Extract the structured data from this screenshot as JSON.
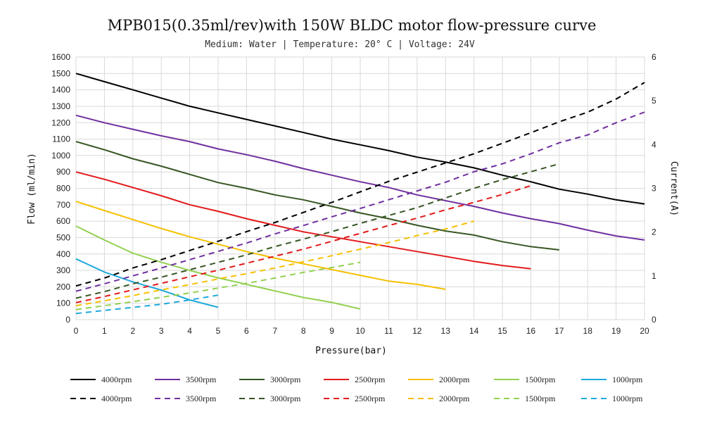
{
  "chart_data": {
    "type": "line",
    "title": "MPB015(0.35ml/rev)with 150W BLDC motor flow-pressure curve",
    "subtitle": "Medium: Water | Temperature: 20° C | Voltage: 24V",
    "xlabel": "Pressure(bar)",
    "ylabel": "Flow (ml/min)",
    "y2label": "Current(A)",
    "xlim": [
      0,
      20
    ],
    "ylim": [
      0,
      1600
    ],
    "y2lim": [
      0,
      6
    ],
    "x_ticks": [
      0,
      1,
      2,
      3,
      4,
      5,
      6,
      7,
      8,
      9,
      10,
      11,
      12,
      13,
      14,
      15,
      16,
      17,
      18,
      19,
      20
    ],
    "y_ticks": [
      0,
      100,
      200,
      300,
      400,
      500,
      600,
      700,
      800,
      900,
      1000,
      1100,
      1200,
      1300,
      1400,
      1500,
      1600
    ],
    "y2_ticks": [
      0,
      1,
      2,
      3,
      4,
      5,
      6
    ],
    "grid": true,
    "legend_position": "bottom",
    "flow_series": [
      {
        "name": "4000rpm",
        "color": "#000000",
        "axis": "flow",
        "x": [
          0,
          1,
          2,
          3,
          4,
          5,
          6,
          7,
          8,
          9,
          10,
          11,
          12,
          13,
          14,
          15,
          16,
          17,
          18,
          19,
          20
        ],
        "y": [
          1500,
          1450,
          1400,
          1350,
          1300,
          1260,
          1220,
          1180,
          1140,
          1100,
          1065,
          1030,
          990,
          960,
          925,
          880,
          840,
          795,
          765,
          730,
          705
        ]
      },
      {
        "name": "3500rpm",
        "color": "#7030A0",
        "axis": "flow",
        "x": [
          0,
          1,
          2,
          3,
          4,
          5,
          6,
          7,
          8,
          9,
          10,
          11,
          12,
          13,
          14,
          15,
          16,
          17,
          18,
          19,
          20
        ],
        "y": [
          1245,
          1200,
          1160,
          1120,
          1085,
          1040,
          1005,
          965,
          920,
          880,
          840,
          805,
          760,
          725,
          690,
          650,
          615,
          585,
          545,
          510,
          485
        ]
      },
      {
        "name": "3000rpm",
        "color": "#375623",
        "axis": "flow",
        "x": [
          0,
          1,
          2,
          3,
          4,
          5,
          6,
          7,
          8,
          9,
          10,
          11,
          12,
          13,
          14,
          15,
          16,
          17
        ],
        "y": [
          1085,
          1035,
          980,
          935,
          885,
          835,
          800,
          760,
          730,
          690,
          650,
          615,
          575,
          540,
          515,
          475,
          445,
          425
        ]
      },
      {
        "name": "2500rpm",
        "color": "#E31A1C",
        "axis": "flow",
        "x": [
          0,
          1,
          2,
          3,
          4,
          5,
          6,
          7,
          8,
          9,
          10,
          11,
          12,
          13,
          14,
          15,
          16
        ],
        "y": [
          900,
          855,
          805,
          755,
          700,
          660,
          615,
          575,
          535,
          505,
          475,
          445,
          415,
          385,
          355,
          330,
          310
        ]
      },
      {
        "name": "2000rpm",
        "color": "#F5C000",
        "axis": "flow",
        "x": [
          0,
          1,
          2,
          3,
          4,
          5,
          6,
          7,
          8,
          9,
          10,
          11,
          12,
          13
        ],
        "y": [
          720,
          665,
          610,
          555,
          505,
          460,
          415,
          375,
          340,
          305,
          270,
          235,
          215,
          185
        ]
      },
      {
        "name": "1500rpm",
        "color": "#92D050",
        "axis": "flow",
        "x": [
          0,
          1,
          2,
          3,
          4,
          5,
          6,
          7,
          8,
          9,
          10
        ],
        "y": [
          570,
          485,
          405,
          350,
          300,
          255,
          215,
          175,
          135,
          105,
          65
        ]
      },
      {
        "name": "1000rpm",
        "color": "#1FA8DC",
        "axis": "flow",
        "x": [
          0,
          1,
          2,
          3,
          4,
          5
        ],
        "y": [
          370,
          290,
          230,
          180,
          120,
          75
        ]
      }
    ],
    "current_series": [
      {
        "name": "4000rpm",
        "color": "#000000",
        "axis": "current",
        "x": [
          0,
          1,
          2,
          3,
          4,
          5,
          6,
          7,
          8,
          9,
          10,
          11,
          12,
          13,
          14,
          15,
          16,
          17,
          18,
          19,
          20
        ],
        "y": [
          0.77,
          0.95,
          1.18,
          1.37,
          1.58,
          1.79,
          2.01,
          2.22,
          2.45,
          2.68,
          2.92,
          3.16,
          3.37,
          3.58,
          3.79,
          4.03,
          4.27,
          4.52,
          4.74,
          5.04,
          5.42
        ]
      },
      {
        "name": "3500rpm",
        "color": "#7030A0",
        "axis": "current",
        "x": [
          0,
          1,
          2,
          3,
          4,
          5,
          6,
          7,
          8,
          9,
          10,
          11,
          12,
          13,
          14,
          15,
          16,
          17,
          18,
          19,
          20
        ],
        "y": [
          0.65,
          0.82,
          1.0,
          1.18,
          1.37,
          1.56,
          1.75,
          1.96,
          2.15,
          2.35,
          2.54,
          2.74,
          2.94,
          3.14,
          3.38,
          3.56,
          3.79,
          4.04,
          4.22,
          4.5,
          4.74
        ]
      },
      {
        "name": "3000rpm",
        "color": "#375623",
        "axis": "current",
        "x": [
          0,
          1,
          2,
          3,
          4,
          5,
          6,
          7,
          8,
          9,
          10,
          11,
          12,
          13,
          14,
          15,
          16,
          17
        ],
        "y": [
          0.49,
          0.64,
          0.82,
          0.97,
          1.14,
          1.31,
          1.48,
          1.67,
          1.84,
          2.01,
          2.2,
          2.38,
          2.56,
          2.78,
          3.0,
          3.2,
          3.38,
          3.56
        ]
      },
      {
        "name": "2500rpm",
        "color": "#E31A1C",
        "axis": "current",
        "x": [
          0,
          1,
          2,
          3,
          4,
          5,
          6,
          7,
          8,
          9,
          10,
          11,
          12,
          13,
          14,
          15,
          16
        ],
        "y": [
          0.39,
          0.53,
          0.68,
          0.83,
          0.98,
          1.13,
          1.29,
          1.45,
          1.61,
          1.79,
          1.97,
          2.15,
          2.32,
          2.51,
          2.68,
          2.86,
          3.06
        ]
      },
      {
        "name": "2000rpm",
        "color": "#F5C000",
        "axis": "current",
        "x": [
          0,
          1,
          2,
          3,
          4,
          5,
          6,
          7,
          8,
          9,
          10,
          11,
          12,
          13,
          14
        ],
        "y": [
          0.32,
          0.43,
          0.55,
          0.68,
          0.8,
          0.93,
          1.05,
          1.18,
          1.32,
          1.46,
          1.61,
          1.76,
          1.92,
          2.07,
          2.25
        ]
      },
      {
        "name": "1500rpm",
        "color": "#92D050",
        "axis": "current",
        "x": [
          0,
          1,
          2,
          3,
          4,
          5,
          6,
          7,
          8,
          9,
          10
        ],
        "y": [
          0.23,
          0.32,
          0.41,
          0.51,
          0.61,
          0.72,
          0.83,
          0.95,
          1.08,
          1.19,
          1.31
        ]
      },
      {
        "name": "1000rpm",
        "color": "#1FA8DC",
        "axis": "current",
        "x": [
          0,
          1,
          2,
          3,
          4,
          5
        ],
        "y": [
          0.14,
          0.21,
          0.28,
          0.35,
          0.45,
          0.56
        ]
      }
    ]
  }
}
